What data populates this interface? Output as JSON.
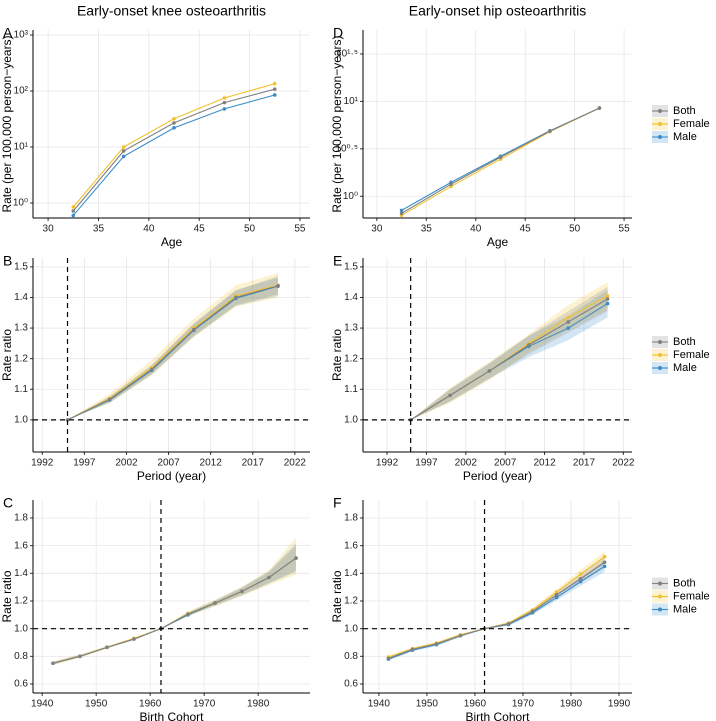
{
  "chart_data": [
    {
      "type": "line",
      "panel_label": "A",
      "title": "Early-onset knee osteoarthritis",
      "x_label": "Age",
      "y_label": "Rate (per 100,000 person−years)",
      "yscale": "log",
      "x": [
        32.5,
        37.5,
        42.5,
        47.5,
        52.5
      ],
      "xlim": [
        28.5,
        56
      ],
      "xticks": [
        30,
        35,
        40,
        45,
        50,
        55
      ],
      "ylim": [
        0.54,
        1230
      ],
      "yticks": [
        {
          "value": 1,
          "label": "10⁰"
        },
        {
          "value": 10,
          "label": "10¹"
        },
        {
          "value": 100,
          "label": "10²"
        },
        {
          "value": 1000,
          "label": "10³"
        }
      ],
      "grid": true,
      "series": [
        {
          "name": "Both",
          "color": "#808080",
          "values": [
            0.72,
            8.5,
            27,
            62,
            108
          ]
        },
        {
          "name": "Female",
          "color": "#f2c12e",
          "values": [
            0.85,
            10,
            32,
            75,
            135
          ]
        },
        {
          "name": "Male",
          "color": "#3a8dc8",
          "values": [
            0.6,
            6.8,
            22,
            48,
            85
          ]
        }
      ]
    },
    {
      "type": "line",
      "panel_label": "B",
      "x_label": "Period (year)",
      "y_label": "Rate ratio",
      "x": [
        1995,
        2000,
        2005,
        2010,
        2015,
        2020
      ],
      "xlim": [
        1990.9,
        2023.8
      ],
      "xticks": [
        1992,
        1997,
        2002,
        2007,
        2012,
        2017,
        2022
      ],
      "ylim": [
        0.895,
        1.529
      ],
      "yticks": [
        {
          "value": 1,
          "label": "1.0"
        },
        1.1,
        1.2,
        1.3,
        1.4,
        1.5
      ],
      "grid": true,
      "vline": 1995,
      "hline": 1,
      "series": [
        {
          "name": "Both",
          "color": "#808080",
          "values": [
            1,
            1.067,
            1.165,
            1.295,
            1.4,
            1.438
          ],
          "lower": [
            1,
            1.058,
            1.15,
            1.275,
            1.375,
            1.41
          ],
          "upper": [
            1,
            1.076,
            1.18,
            1.315,
            1.425,
            1.465
          ]
        },
        {
          "name": "Female",
          "color": "#f2c12e",
          "values": [
            1,
            1.07,
            1.17,
            1.3,
            1.405,
            1.44
          ],
          "lower": [
            1,
            1.055,
            1.145,
            1.27,
            1.37,
            1.4
          ],
          "upper": [
            1,
            1.085,
            1.195,
            1.33,
            1.44,
            1.48
          ]
        },
        {
          "name": "Male",
          "color": "#3a8dc8",
          "values": [
            1,
            1.065,
            1.162,
            1.293,
            1.397,
            1.437
          ],
          "lower": [
            1,
            1.055,
            1.148,
            1.272,
            1.372,
            1.405
          ],
          "upper": [
            1,
            1.075,
            1.176,
            1.314,
            1.422,
            1.47
          ]
        }
      ]
    },
    {
      "type": "line",
      "panel_label": "C",
      "x_label": "Birth Cohort",
      "y_label": "Rate ratio",
      "x": [
        1942,
        1947,
        1952,
        1957,
        1962,
        1967,
        1972,
        1977,
        1982,
        1987
      ],
      "xlim": [
        1938.3,
        1989.6
      ],
      "xticks": [
        1940,
        1950,
        1960,
        1970,
        1980
      ],
      "ylim": [
        0.535,
        1.93
      ],
      "yticks": [
        0.6,
        0.8,
        {
          "value": 1,
          "label": "1.0"
        },
        1.2,
        1.4,
        1.6,
        1.8
      ],
      "grid": true,
      "vline": 1962,
      "hline": 1,
      "series": [
        {
          "name": "Both",
          "color": "#808080",
          "values": [
            0.75,
            0.8,
            0.865,
            0.925,
            1,
            1.105,
            1.185,
            1.27,
            1.37,
            1.51
          ],
          "lower": [
            0.74,
            0.795,
            0.86,
            0.92,
            1,
            1.095,
            1.17,
            1.245,
            1.33,
            1.42
          ],
          "upper": [
            0.76,
            0.81,
            0.87,
            0.93,
            1,
            1.115,
            1.2,
            1.295,
            1.41,
            1.6
          ]
        },
        {
          "name": "Female",
          "color": "#f2c12e",
          "values": [
            0.75,
            0.8,
            0.865,
            0.93,
            1,
            1.11,
            1.185,
            1.27,
            1.37,
            1.51
          ],
          "lower": [
            0.735,
            0.79,
            0.855,
            0.915,
            1,
            1.09,
            1.16,
            1.235,
            1.315,
            1.39
          ],
          "upper": [
            0.765,
            0.815,
            0.875,
            0.935,
            1,
            1.125,
            1.21,
            1.305,
            1.425,
            1.66
          ]
        },
        {
          "name": "Male",
          "color": "#3a8dc8",
          "values": [
            0.75,
            0.8,
            0.865,
            0.925,
            1,
            1.1,
            1.185,
            1.27,
            1.37,
            1.51
          ],
          "lower": [
            0.74,
            0.795,
            0.86,
            0.92,
            1,
            1.09,
            1.165,
            1.24,
            1.325,
            1.41
          ],
          "upper": [
            0.76,
            0.81,
            0.87,
            0.93,
            1,
            1.12,
            1.205,
            1.3,
            1.415,
            1.62
          ]
        }
      ]
    },
    {
      "type": "line",
      "panel_label": "D",
      "title": "Early-onset hip osteoarthritis",
      "x_label": "Age",
      "y_label": "Rate (per 100,000 person−years)",
      "yscale": "log",
      "x": [
        32.5,
        37.5,
        42.5,
        47.5,
        52.5
      ],
      "xlim": [
        28.6,
        55.8
      ],
      "xticks": [
        30,
        35,
        40,
        45,
        50,
        55
      ],
      "ylim": [
        0.59,
        56.6
      ],
      "yticks": [
        {
          "value": 1,
          "label": "10⁰"
        },
        {
          "value": 3.1623,
          "label": "10⁰·⁵"
        },
        {
          "value": 10,
          "label": "10¹"
        },
        {
          "value": 31.623,
          "label": "10¹·⁵"
        }
      ],
      "grid": true,
      "legend": "right",
      "series": [
        {
          "name": "Both",
          "color": "#808080",
          "values": [
            0.66,
            1.34,
            2.58,
            4.86,
            8.5
          ]
        },
        {
          "name": "Female",
          "color": "#f2c12e",
          "values": [
            0.63,
            1.27,
            2.46,
            4.8,
            8.5
          ]
        },
        {
          "name": "Male",
          "color": "#3a8dc8",
          "values": [
            0.71,
            1.4,
            2.64,
            4.9,
            8.5
          ]
        }
      ]
    },
    {
      "type": "line",
      "panel_label": "E",
      "x_label": "Period (year)",
      "y_label": "Rate ratio",
      "x": [
        1995,
        2000,
        2005,
        2010,
        2015,
        2020
      ],
      "xlim": [
        1988.95,
        2023.1
      ],
      "xticks": [
        1992,
        1997,
        2002,
        2007,
        2012,
        2017,
        2022
      ],
      "ylim": [
        0.895,
        1.529
      ],
      "yticks": [
        {
          "value": 1,
          "label": "1.0"
        },
        1.1,
        1.2,
        1.3,
        1.4,
        1.5
      ],
      "grid": true,
      "vline": 1995,
      "hline": 1,
      "legend": "right",
      "series": [
        {
          "name": "Both",
          "color": "#808080",
          "values": [
            1,
            1.08,
            1.16,
            1.245,
            1.32,
            1.395
          ],
          "lower": [
            1,
            1.06,
            1.135,
            1.215,
            1.285,
            1.355
          ],
          "upper": [
            1,
            1.1,
            1.185,
            1.275,
            1.355,
            1.435
          ]
        },
        {
          "name": "Female",
          "color": "#f2c12e",
          "values": [
            1,
            1.08,
            1.16,
            1.25,
            1.335,
            1.405
          ],
          "lower": [
            1,
            1.055,
            1.13,
            1.22,
            1.295,
            1.36
          ],
          "upper": [
            1,
            1.105,
            1.19,
            1.28,
            1.375,
            1.45
          ]
        },
        {
          "name": "Male",
          "color": "#3a8dc8",
          "values": [
            1,
            1.08,
            1.16,
            1.24,
            1.3,
            1.38
          ],
          "lower": [
            1,
            1.06,
            1.135,
            1.205,
            1.26,
            1.335
          ],
          "upper": [
            1,
            1.1,
            1.185,
            1.275,
            1.34,
            1.425
          ]
        }
      ]
    },
    {
      "type": "line",
      "panel_label": "F",
      "x_label": "Birth Cohort",
      "y_label": "Rate ratio",
      "x": [
        1942,
        1947,
        1952,
        1957,
        1962,
        1967,
        1972,
        1977,
        1982,
        1987
      ],
      "xlim": [
        1936.7,
        1992.7
      ],
      "xticks": [
        1940,
        1950,
        1960,
        1970,
        1980,
        1990
      ],
      "ylim": [
        0.535,
        1.93
      ],
      "yticks": [
        0.6,
        0.8,
        {
          "value": 1,
          "label": "1.0"
        },
        1.2,
        1.4,
        1.6,
        1.8
      ],
      "grid": true,
      "vline": 1962,
      "hline": 1,
      "legend": "right",
      "series": [
        {
          "name": "Both",
          "color": "#808080",
          "values": [
            0.785,
            0.85,
            0.89,
            0.95,
            1,
            1.035,
            1.125,
            1.245,
            1.36,
            1.48
          ],
          "lower": [
            0.775,
            0.84,
            0.88,
            0.94,
            1,
            1.025,
            1.11,
            1.225,
            1.33,
            1.44
          ],
          "upper": [
            0.795,
            0.86,
            0.9,
            0.96,
            1,
            1.045,
            1.14,
            1.265,
            1.39,
            1.52
          ]
        },
        {
          "name": "Female",
          "color": "#f2c12e",
          "values": [
            0.795,
            0.855,
            0.895,
            0.955,
            1,
            1.04,
            1.135,
            1.265,
            1.395,
            1.52
          ],
          "lower": [
            0.785,
            0.845,
            0.885,
            0.945,
            1,
            1.03,
            1.12,
            1.245,
            1.365,
            1.48
          ],
          "upper": [
            0.805,
            0.865,
            0.905,
            0.965,
            1,
            1.05,
            1.15,
            1.285,
            1.425,
            1.56
          ]
        },
        {
          "name": "Male",
          "color": "#3a8dc8",
          "values": [
            0.78,
            0.845,
            0.885,
            0.95,
            1,
            1.03,
            1.115,
            1.225,
            1.34,
            1.45
          ],
          "lower": [
            0.77,
            0.835,
            0.875,
            0.94,
            1,
            1.02,
            1.1,
            1.205,
            1.31,
            1.41
          ],
          "upper": [
            0.79,
            0.855,
            0.895,
            0.96,
            1,
            1.04,
            1.13,
            1.245,
            1.37,
            1.49
          ]
        }
      ]
    }
  ]
}
